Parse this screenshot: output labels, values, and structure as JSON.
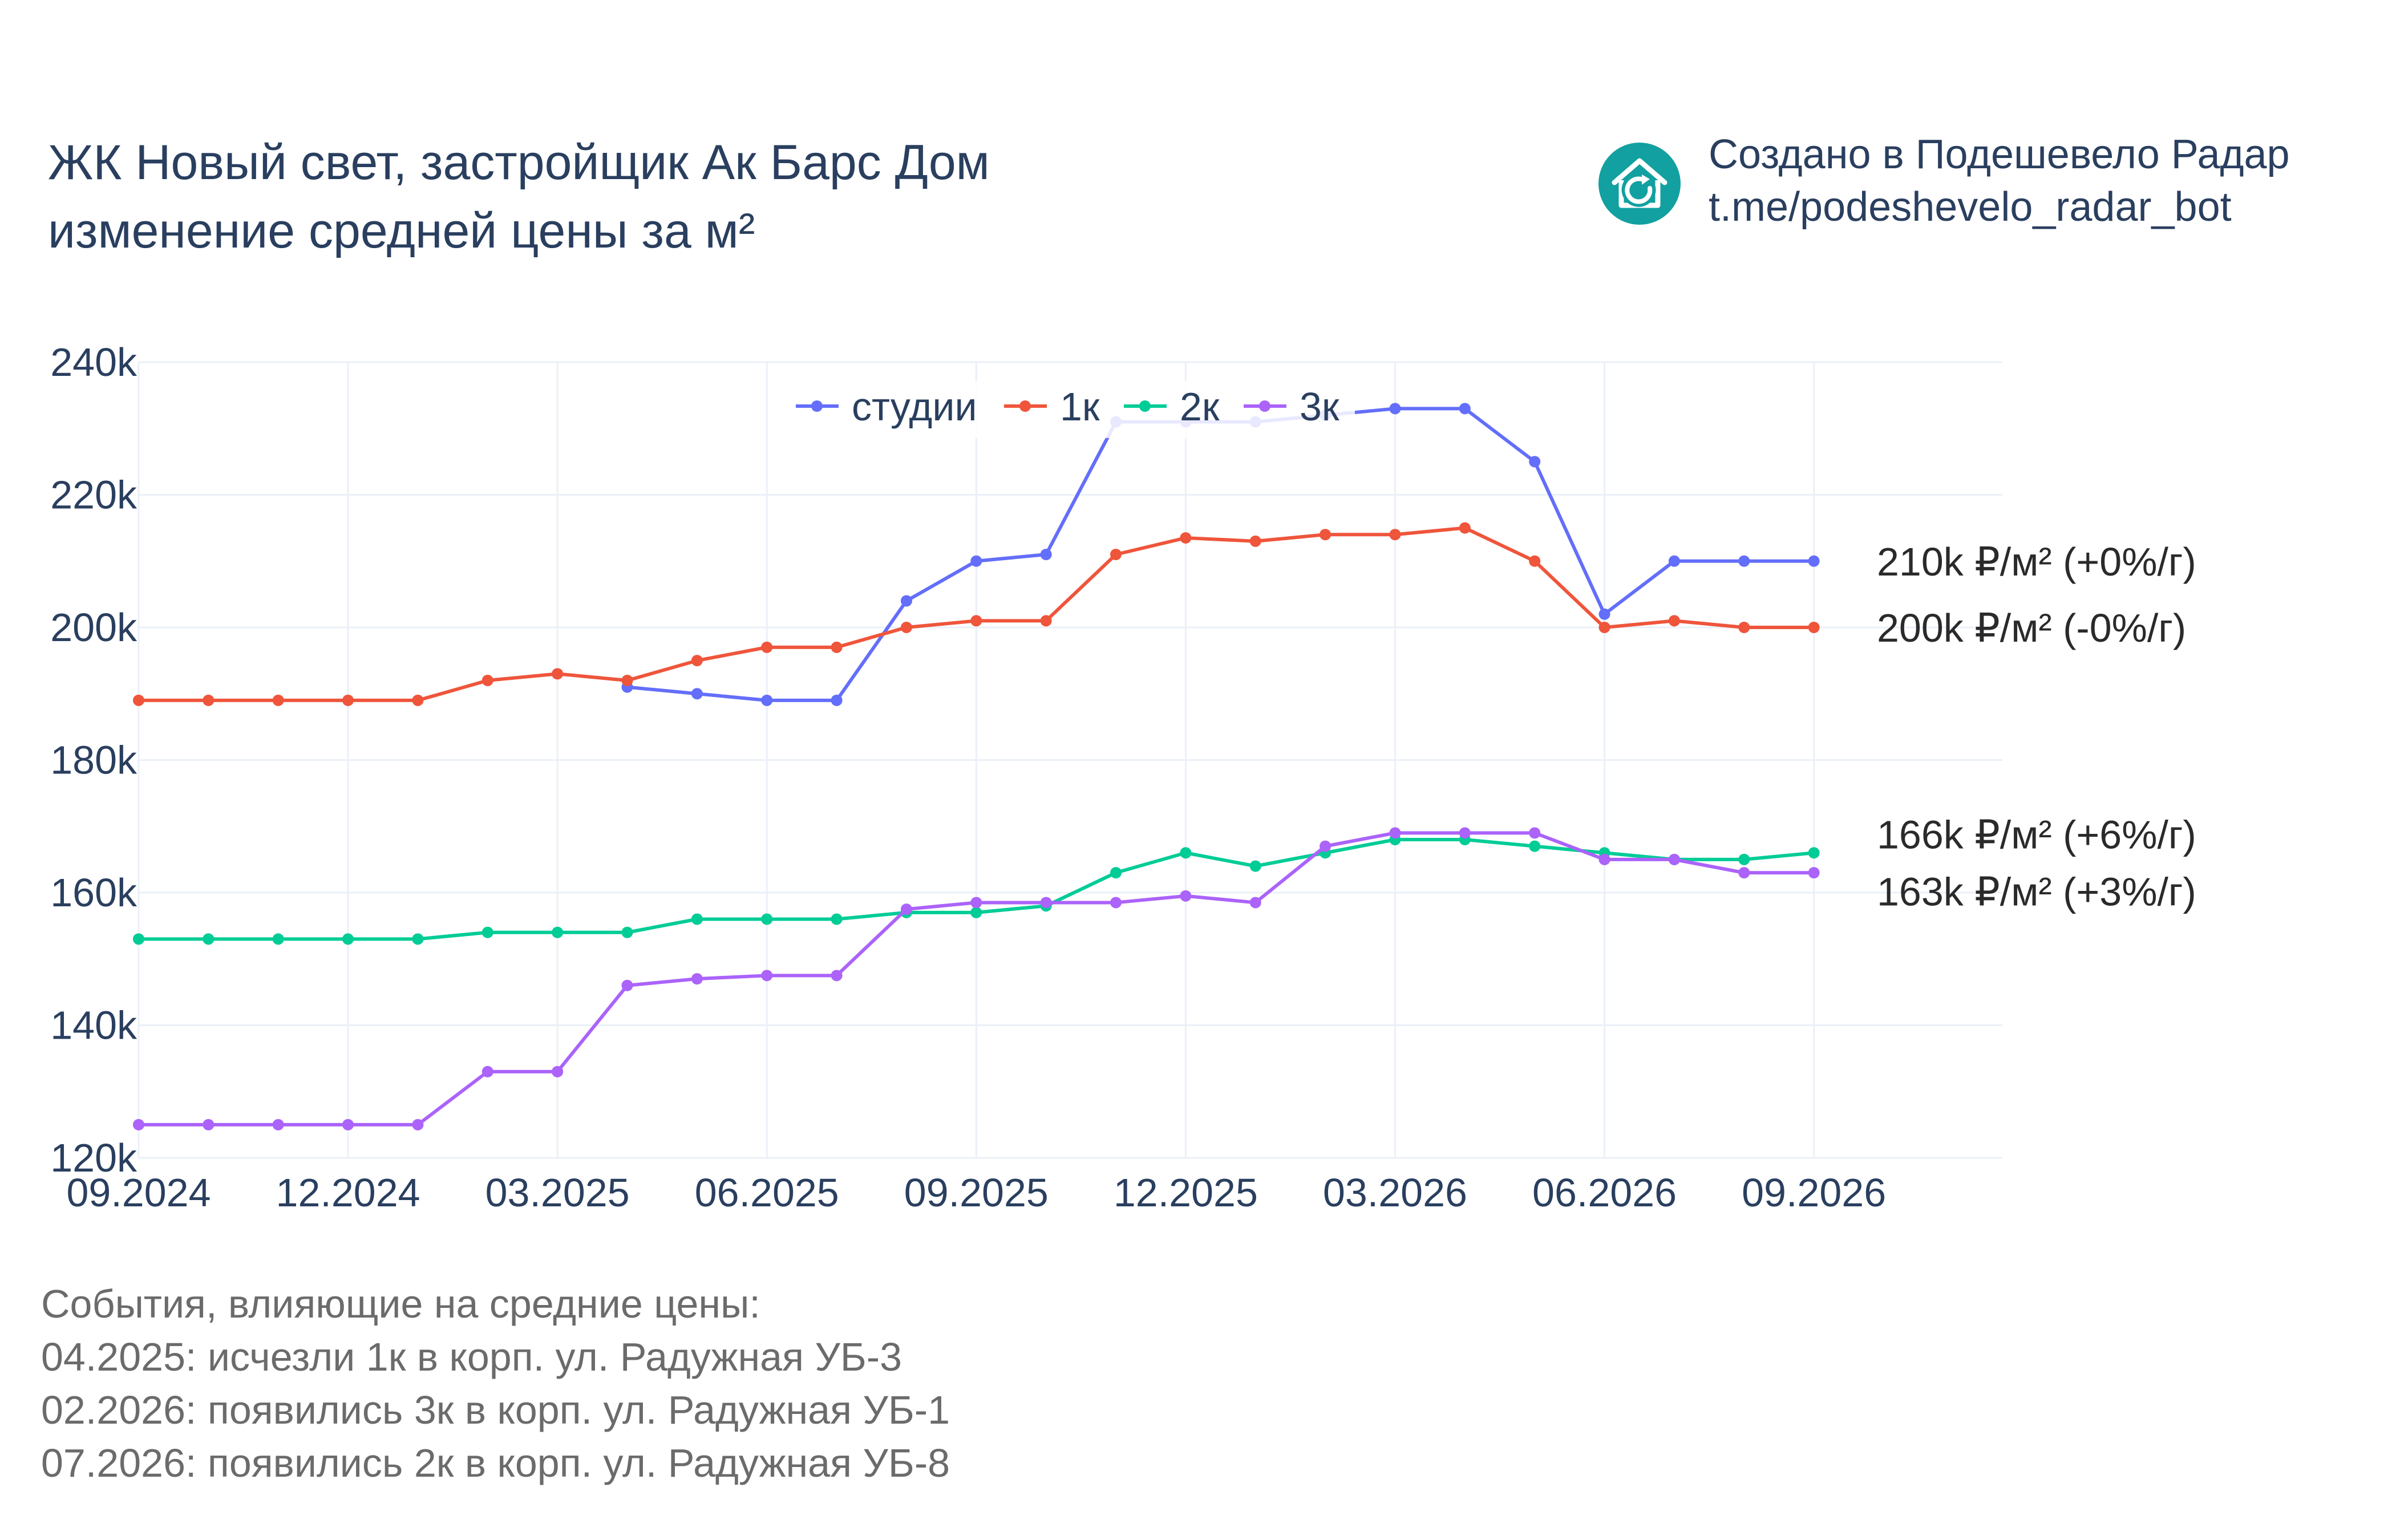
{
  "header": {
    "title_line1": "ЖК Новый свет, застройщик Ак Барс Дом",
    "title_line2": "изменение средней цены за м²"
  },
  "brand": {
    "icon": "house-refresh-icon",
    "color": "#12a0a0",
    "line1": "Создано в Подешевело Радар",
    "line2": "t.me/podeshevelo_radar_bot"
  },
  "events": {
    "heading": "События, влияющие на средние цены:",
    "items": [
      "04.2025: исчезли 1к в корп. ул. Радужная УБ-3",
      "02.2026: появились 3к в корп. ул. Радужная УБ-1",
      "07.2026: появились 2к в корп. ул. Радужная УБ-8"
    ]
  },
  "chart_data": {
    "type": "line",
    "x": [
      "09.2024",
      "10.2024",
      "11.2024",
      "12.2024",
      "01.2025",
      "02.2025",
      "03.2025",
      "04.2025",
      "05.2025",
      "06.2025",
      "07.2025",
      "08.2025",
      "09.2025",
      "10.2025",
      "11.2025",
      "12.2025",
      "01.2026",
      "02.2026",
      "03.2026",
      "04.2026",
      "05.2026",
      "06.2026",
      "07.2026",
      "08.2026",
      "09.2026"
    ],
    "x_tick_labels": [
      "09.2024",
      "12.2024",
      "03.2025",
      "06.2025",
      "09.2025",
      "12.2025",
      "03.2026",
      "06.2026",
      "09.2026"
    ],
    "ylim": [
      120000,
      240000
    ],
    "y_tick_labels": [
      "120k",
      "140k",
      "160k",
      "180k",
      "200k",
      "220k",
      "240k"
    ],
    "y_tick_values": [
      120000,
      140000,
      160000,
      180000,
      200000,
      220000,
      240000
    ],
    "grid": true,
    "legend_position": "top-center",
    "series": [
      {
        "name": "студии",
        "color": "#636efa",
        "values": [
          null,
          null,
          null,
          null,
          null,
          null,
          null,
          191000,
          190000,
          189000,
          189000,
          204000,
          210000,
          211000,
          231000,
          231000,
          231000,
          232000,
          233000,
          233000,
          225000,
          202000,
          210000,
          210000,
          210000
        ],
        "end_label": "210k ₽/м² (+0%/г)"
      },
      {
        "name": "1к",
        "color": "#ef553b",
        "values": [
          189000,
          189000,
          189000,
          189000,
          189000,
          192000,
          193000,
          192000,
          195000,
          197000,
          197000,
          200000,
          201000,
          201000,
          211000,
          213500,
          213000,
          214000,
          214000,
          215000,
          210000,
          200000,
          201000,
          200000,
          200000
        ],
        "end_label": "200k ₽/м² (-0%/г)"
      },
      {
        "name": "2к",
        "color": "#00cc96",
        "values": [
          153000,
          153000,
          153000,
          153000,
          153000,
          154000,
          154000,
          154000,
          156000,
          156000,
          156000,
          157000,
          157000,
          158000,
          163000,
          166000,
          164000,
          166000,
          168000,
          168000,
          167000,
          166000,
          165000,
          165000,
          166000
        ],
        "end_label": "166k ₽/м² (+6%/г)"
      },
      {
        "name": "3к",
        "color": "#ab63fa",
        "values": [
          125000,
          125000,
          125000,
          125000,
          125000,
          133000,
          133000,
          146000,
          147000,
          147500,
          147500,
          157500,
          158500,
          158500,
          158500,
          159500,
          158500,
          167000,
          169000,
          169000,
          169000,
          165000,
          165000,
          163000,
          163000
        ],
        "end_label": "163k ₽/м² (+3%/г)"
      }
    ]
  }
}
